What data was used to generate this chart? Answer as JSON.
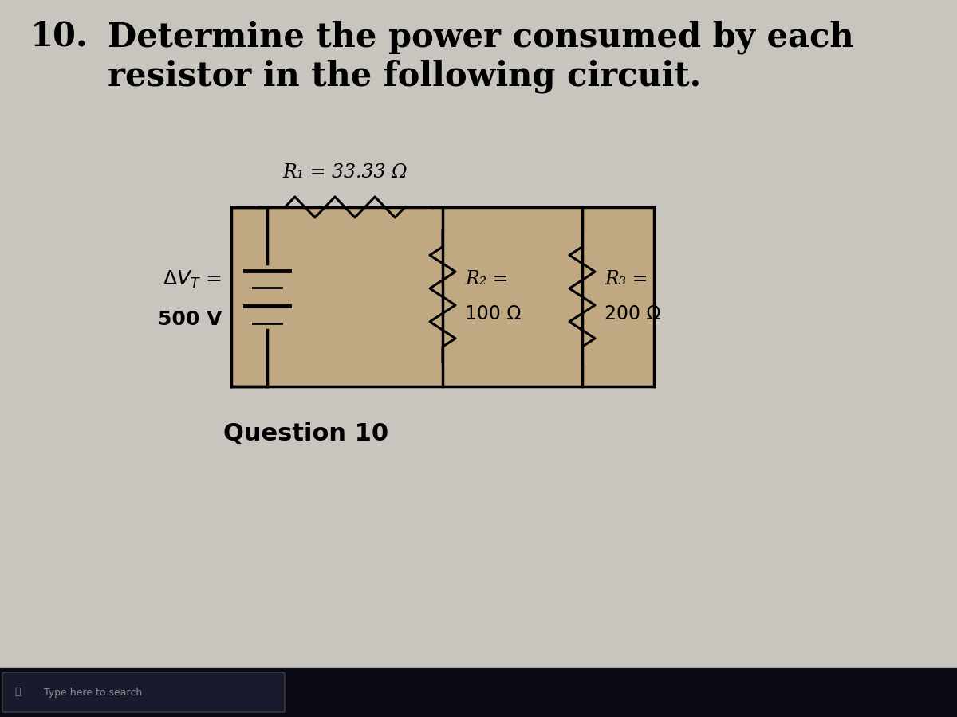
{
  "title_number": "10.",
  "title_text": "Determine the power consumed by each\nresistor in the following circuit.",
  "question_label": "Question 10",
  "r1_label": "R₁ = 33.33 Ω",
  "bg_color": "#c8c4be",
  "circuit_bg": "#c0a882",
  "line_color": "#000000",
  "text_color": "#000000",
  "taskbar_color": "#0a0a14",
  "title_fontsize": 30,
  "label_fontsize": 17,
  "question_fontsize": 22
}
